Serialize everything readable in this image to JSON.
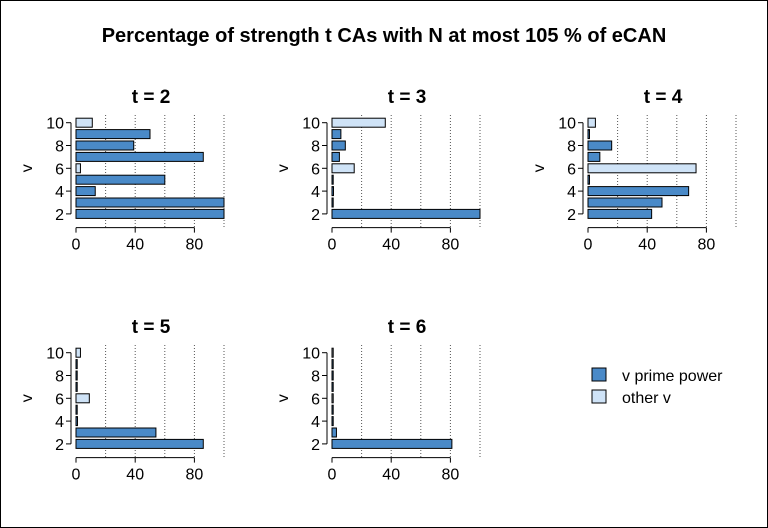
{
  "chart_data": {
    "type": "bar",
    "title": "Percentage of strength t CAs with N at most 105 % of eCAN",
    "ylabel": "v",
    "x_ticks": [
      0,
      40,
      80
    ],
    "xlim": [
      0,
      100
    ],
    "y_ticks": [
      2,
      4,
      6,
      8,
      10
    ],
    "y_values": [
      2,
      3,
      4,
      5,
      6,
      7,
      8,
      9,
      10
    ],
    "colors": {
      "v prime power": "#4a8ac8",
      "other v": "#cfe3f7"
    },
    "legend": {
      "position": "right",
      "entries": [
        {
          "name": "v prime power",
          "type": "prime"
        },
        {
          "name": "other v",
          "type": "other"
        }
      ]
    },
    "panels": [
      {
        "title": "t = 2",
        "bars": [
          {
            "v": 2,
            "value": 100,
            "type": "prime"
          },
          {
            "v": 3,
            "value": 100,
            "type": "prime"
          },
          {
            "v": 4,
            "value": 13,
            "type": "prime"
          },
          {
            "v": 5,
            "value": 60,
            "type": "prime"
          },
          {
            "v": 6,
            "value": 3,
            "type": "other"
          },
          {
            "v": 7,
            "value": 86,
            "type": "prime"
          },
          {
            "v": 8,
            "value": 39,
            "type": "prime"
          },
          {
            "v": 9,
            "value": 50,
            "type": "prime"
          },
          {
            "v": 10,
            "value": 11,
            "type": "other"
          }
        ]
      },
      {
        "title": "t = 3",
        "bars": [
          {
            "v": 2,
            "value": 100,
            "type": "prime"
          },
          {
            "v": 3,
            "value": 0,
            "type": "prime"
          },
          {
            "v": 4,
            "value": 1,
            "type": "prime"
          },
          {
            "v": 5,
            "value": 0.5,
            "type": "prime"
          },
          {
            "v": 6,
            "value": 15,
            "type": "other"
          },
          {
            "v": 7,
            "value": 5,
            "type": "prime"
          },
          {
            "v": 8,
            "value": 9,
            "type": "prime"
          },
          {
            "v": 9,
            "value": 6,
            "type": "prime"
          },
          {
            "v": 10,
            "value": 36,
            "type": "other"
          }
        ]
      },
      {
        "title": "t = 4",
        "bars": [
          {
            "v": 2,
            "value": 43,
            "type": "prime"
          },
          {
            "v": 3,
            "value": 50,
            "type": "prime"
          },
          {
            "v": 4,
            "value": 68,
            "type": "prime"
          },
          {
            "v": 5,
            "value": 1,
            "type": "prime"
          },
          {
            "v": 6,
            "value": 73,
            "type": "other"
          },
          {
            "v": 7,
            "value": 8,
            "type": "prime"
          },
          {
            "v": 8,
            "value": 16,
            "type": "prime"
          },
          {
            "v": 9,
            "value": 1,
            "type": "prime"
          },
          {
            "v": 10,
            "value": 5,
            "type": "other"
          }
        ]
      },
      {
        "title": "t = 5",
        "bars": [
          {
            "v": 2,
            "value": 86,
            "type": "prime"
          },
          {
            "v": 3,
            "value": 54,
            "type": "prime"
          },
          {
            "v": 4,
            "value": 1,
            "type": "prime"
          },
          {
            "v": 5,
            "value": 0.5,
            "type": "prime"
          },
          {
            "v": 6,
            "value": 9,
            "type": "other"
          },
          {
            "v": 7,
            "value": 0.5,
            "type": "prime"
          },
          {
            "v": 8,
            "value": 0.5,
            "type": "prime"
          },
          {
            "v": 9,
            "value": 0.5,
            "type": "prime"
          },
          {
            "v": 10,
            "value": 3,
            "type": "other"
          }
        ]
      },
      {
        "title": "t = 6",
        "bars": [
          {
            "v": 2,
            "value": 81,
            "type": "prime"
          },
          {
            "v": 3,
            "value": 3,
            "type": "prime"
          },
          {
            "v": 4,
            "value": 0.5,
            "type": "prime"
          },
          {
            "v": 5,
            "value": 0.5,
            "type": "prime"
          },
          {
            "v": 6,
            "value": 0.5,
            "type": "other"
          },
          {
            "v": 7,
            "value": 0.5,
            "type": "prime"
          },
          {
            "v": 8,
            "value": 0.5,
            "type": "prime"
          },
          {
            "v": 9,
            "value": 0.5,
            "type": "prime"
          },
          {
            "v": 10,
            "value": 0.5,
            "type": "other"
          }
        ]
      }
    ]
  }
}
